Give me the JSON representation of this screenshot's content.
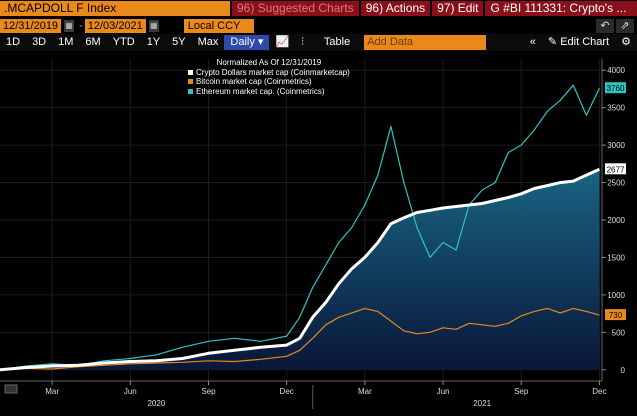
{
  "toolbar": {
    "ticker": ".MCAPDOLL F Index",
    "suggested_charts": "96) Suggested Charts",
    "actions": "96) Actions",
    "edit": "97) Edit",
    "news": "G #BI 111331: Crypto's ..."
  },
  "range": {
    "start_date": "12/31/2019",
    "end_date": "12/03/2021",
    "currency": "Local CCY"
  },
  "periods": [
    "1D",
    "3D",
    "1M",
    "6M",
    "YTD",
    "1Y",
    "5Y",
    "Max"
  ],
  "frequency": "Daily",
  "table_label": "Table",
  "add_data_placeholder": "Add Data",
  "edit_chart_label": "Edit Chart",
  "legend": {
    "title": "Normalized As Of 12/31/2019",
    "series": [
      {
        "name": "Crypto Dollars market cap (Coinmarketcap)",
        "color": "#ffffff"
      },
      {
        "name": "Bitcoin market cap (Coinmetrics)",
        "color": "#e8891a"
      },
      {
        "name": "Ethereum market cap. (Coinmetrics)",
        "color": "#2ec4c4"
      }
    ]
  },
  "chart_data": {
    "type": "line",
    "ylim": [
      -150,
      4150
    ],
    "yticks": [
      0,
      500,
      1000,
      1500,
      2000,
      2500,
      3000,
      3500,
      4000
    ],
    "xticks": [
      "Mar",
      "Jun",
      "Sep",
      "Dec",
      "Mar",
      "Jun",
      "Sep",
      "Dec"
    ],
    "xticks_months": [
      2,
      5,
      8,
      11,
      14,
      17,
      20,
      23
    ],
    "years": [
      {
        "label": "2020",
        "month": 6
      },
      {
        "label": "2021",
        "month": 18.5
      }
    ],
    "xlim": [
      0,
      23.1
    ],
    "series": [
      {
        "name": "Crypto Dollars market cap (Coinmarketcap)",
        "color": "#ffffff",
        "last_value": 2677,
        "x": [
          0,
          1,
          2,
          3,
          4,
          5,
          6,
          7,
          8,
          9,
          10,
          11,
          11.5,
          12,
          12.5,
          13,
          13.5,
          14,
          14.5,
          15,
          15.5,
          16,
          16.5,
          17,
          17.5,
          18,
          18.5,
          19,
          19.5,
          20,
          20.5,
          21,
          21.5,
          22,
          22.5,
          23
        ],
        "y": [
          0,
          30,
          50,
          60,
          90,
          110,
          120,
          150,
          220,
          260,
          300,
          330,
          420,
          700,
          900,
          1150,
          1350,
          1500,
          1700,
          1950,
          2030,
          2100,
          2130,
          2160,
          2180,
          2200,
          2220,
          2260,
          2300,
          2350,
          2420,
          2460,
          2500,
          2520,
          2600,
          2677
        ]
      },
      {
        "name": "Bitcoin market cap (Coinmetrics)",
        "color": "#e8891a",
        "last_value": 730,
        "x": [
          0,
          1,
          2,
          3,
          4,
          5,
          6,
          7,
          8,
          9,
          10,
          11,
          11.5,
          12,
          12.5,
          13,
          13.5,
          14,
          14.5,
          15,
          15.5,
          16,
          16.5,
          17,
          17.5,
          18,
          18.5,
          19,
          19.5,
          20,
          20.5,
          21,
          21.5,
          22,
          22.5,
          23
        ],
        "y": [
          0,
          20,
          10,
          40,
          60,
          80,
          90,
          100,
          120,
          110,
          140,
          180,
          260,
          420,
          600,
          700,
          760,
          820,
          780,
          650,
          520,
          480,
          500,
          560,
          540,
          620,
          600,
          580,
          620,
          720,
          780,
          820,
          760,
          820,
          780,
          730
        ]
      },
      {
        "name": "Ethereum market cap. (Coinmetrics)",
        "color": "#2ec4c4",
        "last_value": 3760,
        "x": [
          0,
          1,
          2,
          3,
          4,
          5,
          6,
          7,
          8,
          9,
          10,
          11,
          11.5,
          12,
          12.5,
          13,
          13.5,
          14,
          14.5,
          15,
          15.5,
          16,
          16.5,
          17,
          17.5,
          18,
          18.5,
          19,
          19.5,
          20,
          20.5,
          21,
          21.5,
          22,
          22.5,
          23
        ],
        "y": [
          0,
          50,
          80,
          60,
          120,
          150,
          200,
          300,
          380,
          420,
          380,
          450,
          700,
          1100,
          1400,
          1700,
          1900,
          2200,
          2600,
          3250,
          2500,
          1900,
          1500,
          1700,
          1600,
          2200,
          2400,
          2500,
          2900,
          3000,
          3200,
          3450,
          3600,
          3800,
          3400,
          3760
        ]
      }
    ]
  }
}
